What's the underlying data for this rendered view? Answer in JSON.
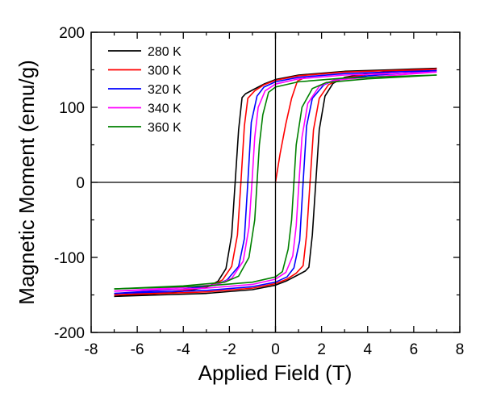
{
  "chart_data": {
    "type": "line",
    "title": "",
    "xlabel": "Applied Field (T)",
    "ylabel": "Magnetic Moment (emu/g)",
    "xlim": [
      -8,
      8
    ],
    "ylim": [
      -200,
      200
    ],
    "xticks": [
      -8,
      -6,
      -4,
      -2,
      0,
      2,
      4,
      6,
      8
    ],
    "yticks": [
      -200,
      -100,
      0,
      100,
      200
    ],
    "x_tick_labels": [
      "-8",
      "-6",
      "-4",
      "-2",
      "0",
      "2",
      "4",
      "6",
      "8"
    ],
    "y_tick_labels": [
      "-200",
      "-100",
      "0",
      "100",
      "200"
    ],
    "grid": false,
    "zero_lines": true,
    "legend_position": "top-left",
    "series": [
      {
        "name": "280 K",
        "color": "#000000",
        "descending": [
          [
            7,
            152
          ],
          [
            5,
            150
          ],
          [
            3,
            148
          ],
          [
            1,
            143
          ],
          [
            0,
            137
          ],
          [
            -0.5,
            131
          ],
          [
            -1,
            123
          ],
          [
            -1.3,
            118
          ],
          [
            -1.45,
            113
          ],
          [
            -1.6,
            70
          ],
          [
            -1.75,
            0
          ],
          [
            -1.9,
            -70
          ],
          [
            -2.15,
            -115
          ],
          [
            -2.5,
            -132
          ],
          [
            -3,
            -140
          ],
          [
            -4,
            -145
          ],
          [
            -5,
            -148
          ],
          [
            -7,
            -152
          ]
        ],
        "ascending": [
          [
            -7,
            -152
          ],
          [
            -5,
            -150
          ],
          [
            -3,
            -148
          ],
          [
            -1,
            -143
          ],
          [
            0,
            -137
          ],
          [
            0.5,
            -131
          ],
          [
            1,
            -123
          ],
          [
            1.3,
            -118
          ],
          [
            1.45,
            -113
          ],
          [
            1.6,
            -70
          ],
          [
            1.75,
            0
          ],
          [
            1.9,
            70
          ],
          [
            2.15,
            115
          ],
          [
            2.5,
            132
          ],
          [
            3,
            140
          ],
          [
            4,
            145
          ],
          [
            5,
            148
          ],
          [
            7,
            152
          ]
        ],
        "virgin": []
      },
      {
        "name": "300 K",
        "color": "#ff0000",
        "descending": [
          [
            7,
            151
          ],
          [
            5,
            149
          ],
          [
            3,
            147
          ],
          [
            1,
            142
          ],
          [
            0,
            136
          ],
          [
            -0.5,
            130
          ],
          [
            -0.9,
            122
          ],
          [
            -1.2,
            112
          ],
          [
            -1.35,
            75
          ],
          [
            -1.5,
            0
          ],
          [
            -1.65,
            -70
          ],
          [
            -1.9,
            -112
          ],
          [
            -2.3,
            -130
          ],
          [
            -2.8,
            -138
          ],
          [
            -4,
            -144
          ],
          [
            -5,
            -147
          ],
          [
            -7,
            -150
          ]
        ],
        "ascending": [
          [
            -7,
            -150
          ],
          [
            -5,
            -148
          ],
          [
            -3,
            -146
          ],
          [
            -1,
            -141
          ],
          [
            0,
            -135
          ],
          [
            0.5,
            -129
          ],
          [
            0.9,
            -121
          ],
          [
            1.2,
            -111
          ],
          [
            1.35,
            -70
          ],
          [
            1.5,
            0
          ],
          [
            1.65,
            70
          ],
          [
            1.9,
            112
          ],
          [
            2.3,
            130
          ],
          [
            2.8,
            138
          ],
          [
            4,
            144
          ],
          [
            5,
            147
          ],
          [
            7,
            151
          ]
        ],
        "virgin": [
          [
            0,
            0
          ],
          [
            0.2,
            38
          ],
          [
            0.45,
            78
          ],
          [
            0.7,
            112
          ],
          [
            0.95,
            135
          ],
          [
            1.3,
            140
          ]
        ]
      },
      {
        "name": "320 K",
        "color": "#0000ff",
        "descending": [
          [
            7,
            149
          ],
          [
            5,
            147
          ],
          [
            3,
            145
          ],
          [
            1,
            140
          ],
          [
            0,
            134
          ],
          [
            -0.5,
            127
          ],
          [
            -0.8,
            115
          ],
          [
            -1.05,
            80
          ],
          [
            -1.2,
            0
          ],
          [
            -1.35,
            -75
          ],
          [
            -1.6,
            -112
          ],
          [
            -2.1,
            -130
          ],
          [
            -2.6,
            -137
          ],
          [
            -4,
            -142
          ],
          [
            -7,
            -148
          ]
        ],
        "ascending": [
          [
            -7,
            -148
          ],
          [
            -5,
            -146
          ],
          [
            -3,
            -144
          ],
          [
            -1,
            -139
          ],
          [
            0,
            -133
          ],
          [
            0.5,
            -126
          ],
          [
            0.8,
            -114
          ],
          [
            1.05,
            -78
          ],
          [
            1.2,
            0
          ],
          [
            1.35,
            75
          ],
          [
            1.6,
            112
          ],
          [
            2.1,
            130
          ],
          [
            2.6,
            137
          ],
          [
            4,
            142
          ],
          [
            7,
            149
          ]
        ],
        "virgin": []
      },
      {
        "name": "340 K",
        "color": "#ff00ff",
        "descending": [
          [
            7,
            147
          ],
          [
            5,
            145
          ],
          [
            3,
            143
          ],
          [
            1,
            138
          ],
          [
            0,
            131
          ],
          [
            -0.45,
            122
          ],
          [
            -0.75,
            100
          ],
          [
            -0.9,
            60
          ],
          [
            -1.02,
            0
          ],
          [
            -1.15,
            -60
          ],
          [
            -1.4,
            -105
          ],
          [
            -1.9,
            -128
          ],
          [
            -2.5,
            -136
          ],
          [
            -4,
            -140
          ],
          [
            -7,
            -145
          ]
        ],
        "ascending": [
          [
            -7,
            -145
          ],
          [
            -5,
            -143
          ],
          [
            -3,
            -141
          ],
          [
            -1,
            -136
          ],
          [
            0,
            -129
          ],
          [
            0.45,
            -120
          ],
          [
            0.75,
            -98
          ],
          [
            0.9,
            -58
          ],
          [
            1.02,
            0
          ],
          [
            1.15,
            60
          ],
          [
            1.4,
            105
          ],
          [
            1.9,
            128
          ],
          [
            2.5,
            136
          ],
          [
            4,
            140
          ],
          [
            7,
            147
          ]
        ],
        "virgin": []
      },
      {
        "name": "360 K",
        "color": "#008000",
        "descending": [
          [
            7,
            143
          ],
          [
            5,
            141
          ],
          [
            3,
            139
          ],
          [
            1,
            134
          ],
          [
            0,
            127
          ],
          [
            -0.3,
            120
          ],
          [
            -0.55,
            90
          ],
          [
            -0.7,
            50
          ],
          [
            -0.8,
            0
          ],
          [
            -0.9,
            -50
          ],
          [
            -1.15,
            -100
          ],
          [
            -1.6,
            -125
          ],
          [
            -2.2,
            -133
          ],
          [
            -4,
            -138
          ],
          [
            -7,
            -142
          ]
        ],
        "ascending": [
          [
            -7,
            -142
          ],
          [
            -5,
            -140
          ],
          [
            -3,
            -138
          ],
          [
            -1,
            -133
          ],
          [
            0,
            -126
          ],
          [
            0.3,
            -119
          ],
          [
            0.55,
            -89
          ],
          [
            0.7,
            -50
          ],
          [
            0.8,
            0
          ],
          [
            0.9,
            50
          ],
          [
            1.15,
            100
          ],
          [
            1.6,
            125
          ],
          [
            2.2,
            133
          ],
          [
            4,
            138
          ],
          [
            7,
            143
          ]
        ],
        "virgin": []
      }
    ]
  }
}
